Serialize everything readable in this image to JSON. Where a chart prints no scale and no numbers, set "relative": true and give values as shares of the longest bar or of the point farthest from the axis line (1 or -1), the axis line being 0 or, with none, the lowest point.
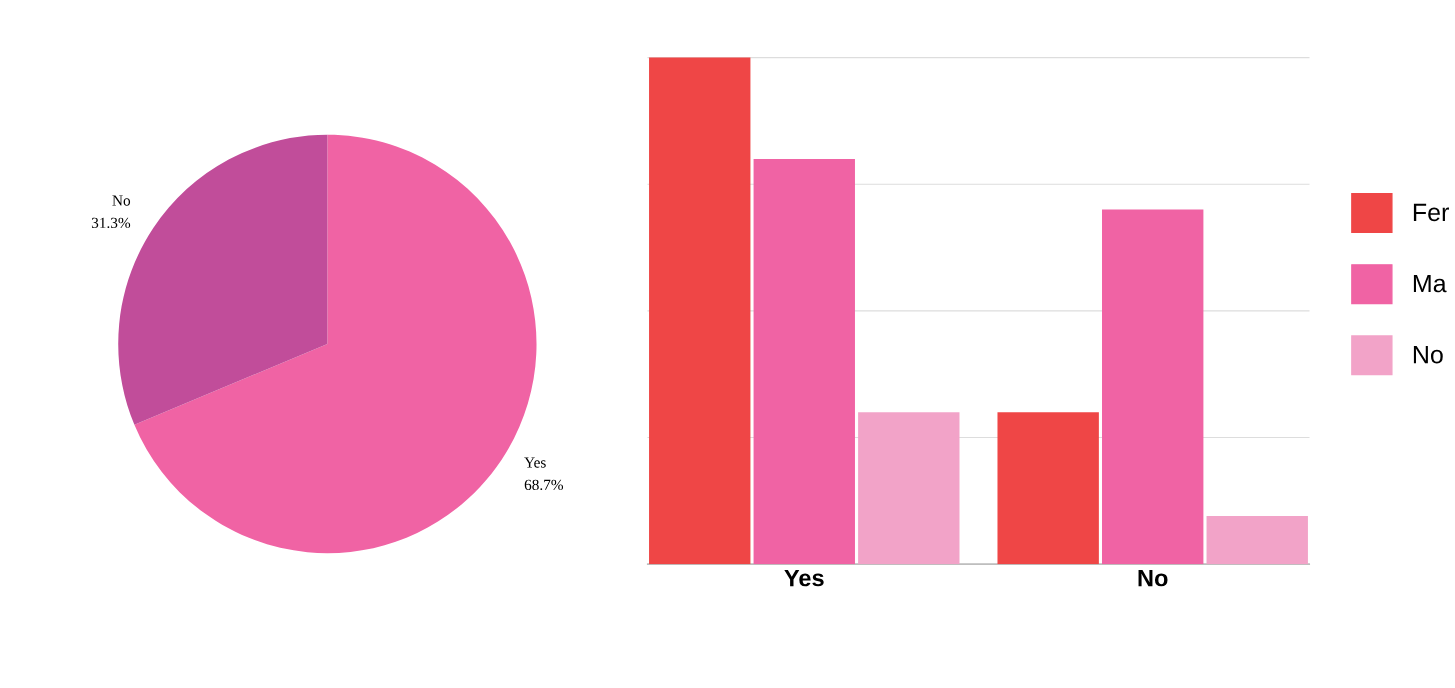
{
  "chart_data": [
    {
      "type": "pie",
      "categories": [
        "Yes",
        "No"
      ],
      "values": [
        68.7,
        31.3
      ],
      "colors": [
        "#f063a4",
        "#c14d9a"
      ],
      "value_labels": [
        "68.7%",
        "31.3%"
      ]
    },
    {
      "type": "bar",
      "relative": true,
      "categories": [
        "Yes",
        "No"
      ],
      "grid": "y",
      "legend": "right",
      "series": [
        {
          "name": "Fer",
          "color": "#ef4646",
          "values": [
            1,
            0.3
          ]
        },
        {
          "name": "Ma",
          "color": "#f063a4",
          "values": [
            0.8,
            0.7
          ]
        },
        {
          "name": "No",
          "color": "#f2a3c8",
          "values": [
            0.3,
            0.095
          ]
        }
      ]
    }
  ]
}
